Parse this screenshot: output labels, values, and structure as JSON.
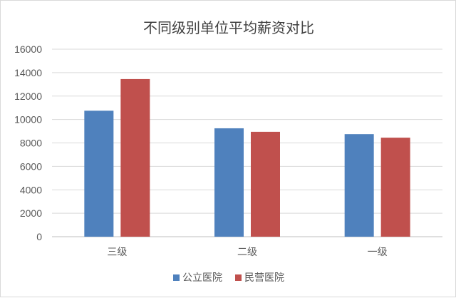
{
  "chart_data": {
    "type": "bar",
    "title": "不同级别单位平均薪资对比",
    "categories": [
      "三级",
      "二级",
      "一级"
    ],
    "series": [
      {
        "name": "公立医院",
        "values": [
          10750,
          9250,
          8750
        ],
        "color": "#4f81bd"
      },
      {
        "name": "民营医院",
        "values": [
          13450,
          8950,
          8450
        ],
        "color": "#c0504d"
      }
    ],
    "ylim": [
      0,
      16000
    ],
    "yticks": [
      0,
      2000,
      4000,
      6000,
      8000,
      10000,
      12000,
      14000,
      16000
    ],
    "grid": true,
    "legend_position": "bottom"
  }
}
